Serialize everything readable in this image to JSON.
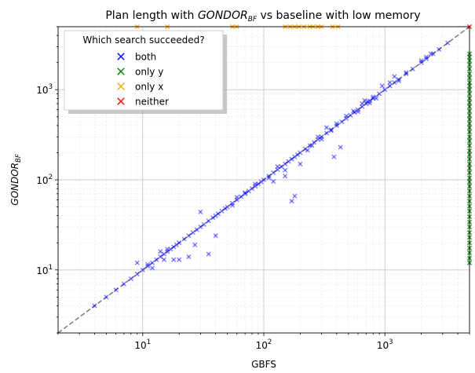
{
  "chart_data": {
    "type": "scatter",
    "title": {
      "prefix": "Plan length with ",
      "emph": "GONDOR",
      "emph_sub": "BF",
      "suffix": " vs baseline with low memory"
    },
    "xlabel": "GBFS",
    "ylabel": {
      "main": "GONDOR",
      "sub": "BF"
    },
    "x_scale": "log",
    "y_scale": "log",
    "xlim": [
      2,
      5000
    ],
    "ylim": [
      2,
      5000
    ],
    "x_ticks": [
      {
        "value": 10,
        "base": "10",
        "exp": "1"
      },
      {
        "value": 100,
        "base": "10",
        "exp": "2"
      },
      {
        "value": 1000,
        "base": "10",
        "exp": "3"
      }
    ],
    "y_ticks": [
      {
        "value": 10,
        "base": "10",
        "exp": "1"
      },
      {
        "value": 100,
        "base": "10",
        "exp": "2"
      },
      {
        "value": 1000,
        "base": "10",
        "exp": "3"
      }
    ],
    "grid": true,
    "diagonal_line": {
      "from": [
        2,
        2
      ],
      "to": [
        5000,
        5000
      ],
      "color": "#808080",
      "style": "dashed"
    },
    "legend": {
      "title": "Which search succeeded?",
      "placement": "top-left",
      "entries": [
        {
          "label": "both",
          "color": "#0000ff"
        },
        {
          "label": "only y",
          "color": "#008000"
        },
        {
          "label": "only x",
          "color": "#ffa500"
        },
        {
          "label": "neither",
          "color": "#ff0000"
        }
      ]
    },
    "series": [
      {
        "name": "both",
        "color": "#0000ff",
        "points": [
          [
            4,
            4
          ],
          [
            5,
            5
          ],
          [
            6,
            6
          ],
          [
            7,
            7
          ],
          [
            8,
            8
          ],
          [
            9,
            9
          ],
          [
            10,
            10
          ],
          [
            11,
            11
          ],
          [
            12,
            12
          ],
          [
            13,
            13
          ],
          [
            14,
            14
          ],
          [
            15,
            15
          ],
          [
            16,
            16
          ],
          [
            17,
            17
          ],
          [
            18,
            18
          ],
          [
            19,
            19
          ],
          [
            20,
            20
          ],
          [
            22,
            22
          ],
          [
            24,
            24
          ],
          [
            26,
            26
          ],
          [
            28,
            28
          ],
          [
            30,
            30
          ],
          [
            32,
            32
          ],
          [
            35,
            35
          ],
          [
            38,
            38
          ],
          [
            40,
            40
          ],
          [
            42,
            42
          ],
          [
            45,
            45
          ],
          [
            48,
            48
          ],
          [
            50,
            50
          ],
          [
            55,
            55
          ],
          [
            60,
            60
          ],
          [
            65,
            65
          ],
          [
            70,
            70
          ],
          [
            75,
            75
          ],
          [
            80,
            80
          ],
          [
            85,
            85
          ],
          [
            90,
            90
          ],
          [
            95,
            95
          ],
          [
            100,
            100
          ],
          [
            110,
            110
          ],
          [
            120,
            120
          ],
          [
            130,
            130
          ],
          [
            140,
            140
          ],
          [
            150,
            150
          ],
          [
            160,
            160
          ],
          [
            170,
            170
          ],
          [
            180,
            180
          ],
          [
            190,
            190
          ],
          [
            200,
            200
          ],
          [
            220,
            220
          ],
          [
            240,
            240
          ],
          [
            260,
            260
          ],
          [
            280,
            280
          ],
          [
            300,
            300
          ],
          [
            330,
            330
          ],
          [
            360,
            360
          ],
          [
            400,
            400
          ],
          [
            440,
            440
          ],
          [
            480,
            480
          ],
          [
            520,
            520
          ],
          [
            560,
            560
          ],
          [
            600,
            600
          ],
          [
            650,
            650
          ],
          [
            700,
            700
          ],
          [
            750,
            750
          ],
          [
            800,
            800
          ],
          [
            900,
            900
          ],
          [
            1000,
            1000
          ],
          [
            1100,
            1100
          ],
          [
            1200,
            1200
          ],
          [
            1300,
            1300
          ],
          [
            1500,
            1500
          ],
          [
            1700,
            1700
          ],
          [
            2000,
            2000
          ],
          [
            2200,
            2200
          ],
          [
            2500,
            2500
          ],
          [
            2800,
            2800
          ],
          [
            3300,
            3300
          ],
          [
            9,
            12
          ],
          [
            11,
            11.5
          ],
          [
            12,
            10.5
          ],
          [
            14,
            16
          ],
          [
            15,
            13
          ],
          [
            16,
            17
          ],
          [
            18,
            13
          ],
          [
            20,
            13
          ],
          [
            24,
            14
          ],
          [
            27,
            19
          ],
          [
            30,
            44
          ],
          [
            35,
            15
          ],
          [
            40,
            24
          ],
          [
            55,
            52
          ],
          [
            60,
            64
          ],
          [
            70,
            72
          ],
          [
            85,
            90
          ],
          [
            110,
            105
          ],
          [
            120,
            96
          ],
          [
            130,
            140
          ],
          [
            150,
            128
          ],
          [
            150,
            110
          ],
          [
            170,
            58
          ],
          [
            180,
            66
          ],
          [
            200,
            150
          ],
          [
            230,
            213
          ],
          [
            250,
            240
          ],
          [
            280,
            300
          ],
          [
            300,
            282
          ],
          [
            330,
            380
          ],
          [
            360,
            350
          ],
          [
            380,
            180
          ],
          [
            400,
            420
          ],
          [
            430,
            230
          ],
          [
            480,
            510
          ],
          [
            550,
            580
          ],
          [
            600,
            570
          ],
          [
            650,
            700
          ],
          [
            680,
            760
          ],
          [
            720,
            740
          ],
          [
            750,
            710
          ],
          [
            800,
            830
          ],
          [
            850,
            800
          ],
          [
            950,
            1100
          ],
          [
            1100,
            1200
          ],
          [
            1200,
            1400
          ],
          [
            1300,
            1250
          ],
          [
            1500,
            1550
          ],
          [
            2000,
            2100
          ],
          [
            2200,
            2300
          ],
          [
            2400,
            2500
          ]
        ]
      },
      {
        "name": "only y",
        "color": "#008000",
        "points": [
          [
            5000,
            2500
          ],
          [
            5000,
            2300
          ],
          [
            5000,
            2100
          ],
          [
            5000,
            1900
          ],
          [
            5000,
            1700
          ],
          [
            5000,
            1500
          ],
          [
            5000,
            1350
          ],
          [
            5000,
            1200
          ],
          [
            5000,
            1100
          ],
          [
            5000,
            1000
          ],
          [
            5000,
            900
          ],
          [
            5000,
            800
          ],
          [
            5000,
            720
          ],
          [
            5000,
            650
          ],
          [
            5000,
            580
          ],
          [
            5000,
            520
          ],
          [
            5000,
            470
          ],
          [
            5000,
            420
          ],
          [
            5000,
            380
          ],
          [
            5000,
            340
          ],
          [
            5000,
            300
          ],
          [
            5000,
            270
          ],
          [
            5000,
            240
          ],
          [
            5000,
            210
          ],
          [
            5000,
            190
          ],
          [
            5000,
            170
          ],
          [
            5000,
            150
          ],
          [
            5000,
            135
          ],
          [
            5000,
            120
          ],
          [
            5000,
            105
          ],
          [
            5000,
            95
          ],
          [
            5000,
            85
          ],
          [
            5000,
            75
          ],
          [
            5000,
            66
          ],
          [
            5000,
            58
          ],
          [
            5000,
            51
          ],
          [
            5000,
            45
          ],
          [
            5000,
            39
          ],
          [
            5000,
            34
          ],
          [
            5000,
            30
          ],
          [
            5000,
            26
          ],
          [
            5000,
            23
          ],
          [
            5000,
            20
          ],
          [
            5000,
            17.5
          ],
          [
            5000,
            15.5
          ],
          [
            5000,
            13.5
          ],
          [
            5000,
            12
          ]
        ]
      },
      {
        "name": "only x",
        "color": "#ffa500",
        "points": [
          [
            9,
            5000
          ],
          [
            16,
            5000
          ],
          [
            55,
            5000
          ],
          [
            60,
            5000
          ],
          [
            150,
            5000
          ],
          [
            165,
            5000
          ],
          [
            180,
            5000
          ],
          [
            195,
            5000
          ],
          [
            215,
            5000
          ],
          [
            240,
            5000
          ],
          [
            255,
            5000
          ],
          [
            280,
            5000
          ],
          [
            300,
            5000
          ],
          [
            370,
            5000
          ],
          [
            410,
            5000
          ]
        ]
      },
      {
        "name": "neither",
        "color": "#ff0000",
        "points": [
          [
            5000,
            5000
          ]
        ]
      }
    ]
  }
}
